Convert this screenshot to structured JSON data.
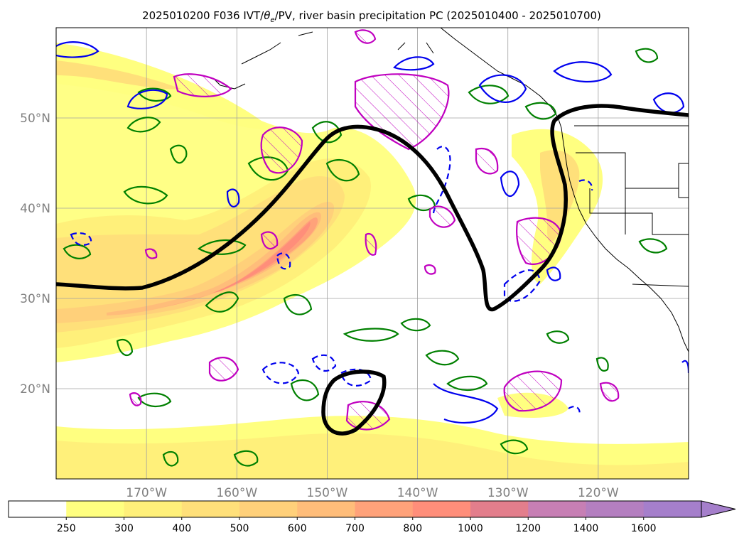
{
  "title": {
    "prefix": "2025010200 F036 IVT/",
    "theta": "θ",
    "theta_sub": "e",
    "suffix": "/PV, river basin precipitation PC (2025010400 - 2025010700)"
  },
  "map": {
    "lon_range": [
      -180,
      -110
    ],
    "lat_range": [
      10,
      60
    ],
    "lon_ticks": [
      {
        "value": -170,
        "label": "170°W"
      },
      {
        "value": -160,
        "label": "160°W"
      },
      {
        "value": -150,
        "label": "150°W"
      },
      {
        "value": -140,
        "label": "140°W"
      },
      {
        "value": -130,
        "label": "130°W"
      },
      {
        "value": -120,
        "label": "120°W"
      }
    ],
    "lat_ticks": [
      {
        "value": 20,
        "label": "20°N"
      },
      {
        "value": 30,
        "label": "30°N"
      },
      {
        "value": 40,
        "label": "40°N"
      },
      {
        "value": 50,
        "label": "50°N"
      }
    ],
    "grid": true
  },
  "colorbar": {
    "levels": [
      250,
      300,
      400,
      500,
      600,
      700,
      800,
      1000,
      1200,
      1400,
      1600
    ],
    "level_labels": [
      "250",
      "300",
      "400",
      "500",
      "600",
      "700",
      "800",
      "1000",
      "1200",
      "1400",
      "1600"
    ],
    "colors": [
      "#ffffff",
      "#ffff80",
      "#fff07a",
      "#ffe07a",
      "#ffd07a",
      "#ffbd7a",
      "#ffa27a",
      "#ff8e7a",
      "#e37e8c",
      "#c77fb4",
      "#b47fc0",
      "#a57fcb"
    ],
    "extend": "max"
  },
  "colors": {
    "ivt_contour_outline": "#000000",
    "pv_contour": "#000000",
    "theta_e_positive": "#0000ee",
    "theta_e_negative": "#0000ee",
    "precip": "#008000",
    "basin_pc": "#c000c0"
  }
}
